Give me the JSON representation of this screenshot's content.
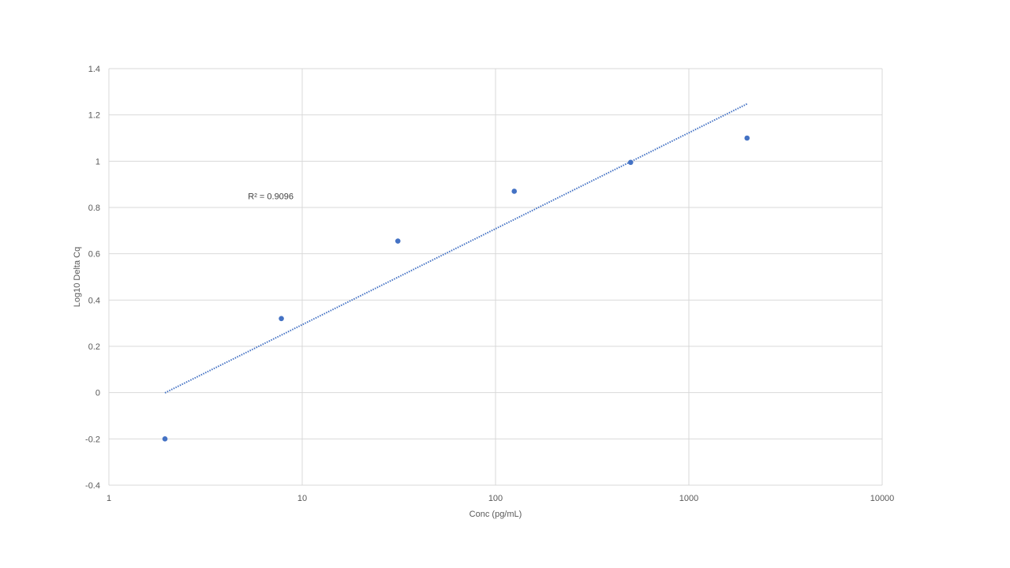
{
  "chart_data": {
    "type": "scatter",
    "title": "",
    "xlabel": "Conc (pg/mL)",
    "ylabel": "Log10 Delta Cq",
    "x_scale": "log",
    "xlim": [
      1,
      10000
    ],
    "ylim": [
      -0.4,
      1.4
    ],
    "x_ticks": [
      1,
      10,
      100,
      1000,
      10000
    ],
    "x_tick_labels": [
      "1",
      "10",
      "100",
      "1000",
      "10000"
    ],
    "y_ticks": [
      -0.4,
      -0.2,
      0,
      0.2,
      0.4,
      0.6,
      0.8,
      1,
      1.2,
      1.4
    ],
    "y_tick_labels": [
      "-0.4",
      "-0.2",
      "0",
      "0.2",
      "0.4",
      "0.6",
      "0.8",
      "1",
      "1.2",
      "1.4"
    ],
    "grid": true,
    "legend": "none",
    "series": [
      {
        "x": [
          1.95,
          7.8,
          31.25,
          125,
          500,
          2000
        ],
        "y": [
          -0.2,
          0.32,
          0.655,
          0.87,
          0.995,
          1.1
        ],
        "color": "#4472c4"
      }
    ],
    "trendline": {
      "type": "logarithmic",
      "style": "dotted",
      "color": "#4472c4",
      "x_range": [
        1.95,
        2000
      ]
    },
    "annotations": [
      {
        "text": "R² = 0.9096",
        "x": 8,
        "y": 0.85
      }
    ]
  }
}
